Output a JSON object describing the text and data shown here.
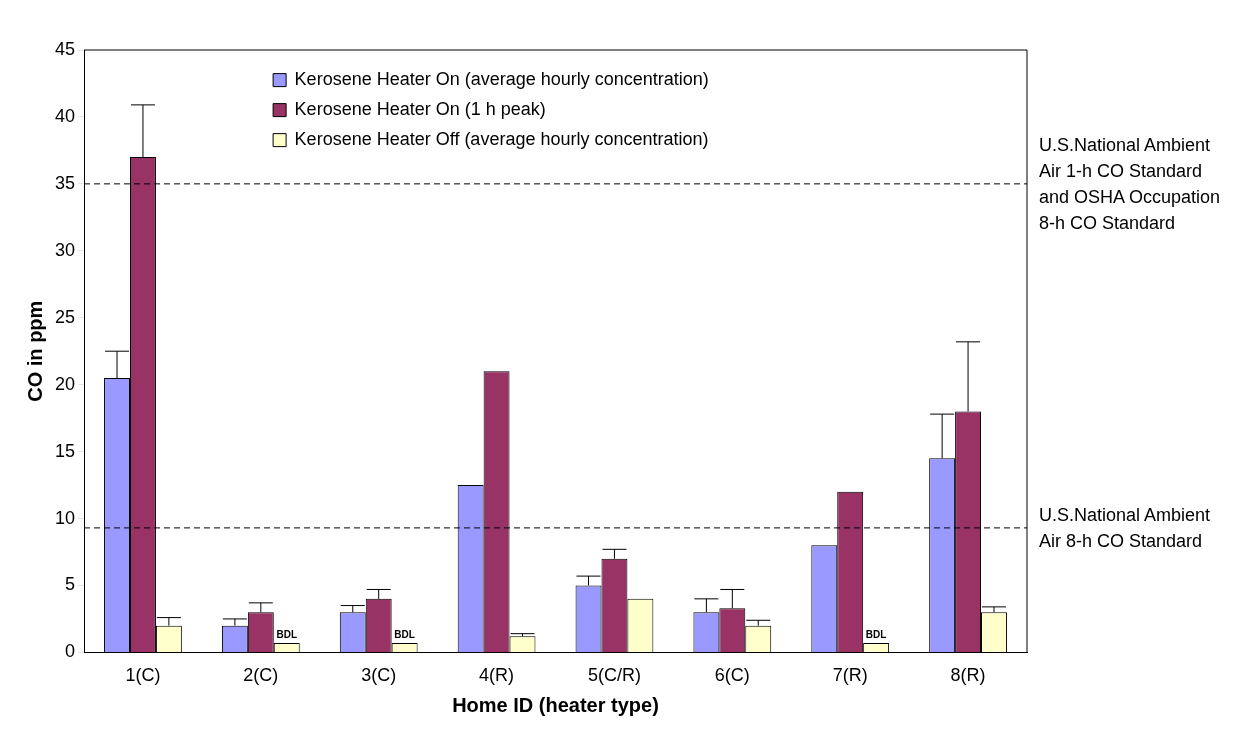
{
  "chart_data": {
    "type": "bar",
    "xlabel": "Home ID (heater type)",
    "ylabel": "CO in ppm",
    "categories": [
      "1(C)",
      "2(C)",
      "3(C)",
      "4(R)",
      "5(C/R)",
      "6(C)",
      "7(R)",
      "8(R)"
    ],
    "series": [
      {
        "name": "Kerosene Heater On (average hourly concentration)",
        "color": "#9999ff",
        "values": [
          20.5,
          2,
          3,
          12.5,
          5,
          3,
          8,
          14.5
        ],
        "errors": [
          [
            20.5,
            22.5
          ],
          [
            2,
            2.5
          ],
          [
            3,
            3.5
          ],
          null,
          [
            5,
            5.7
          ],
          [
            3,
            4
          ],
          null,
          [
            14.5,
            17.8
          ]
        ]
      },
      {
        "name": "Kerosene Heater On (1 h peak)",
        "color": "#993366",
        "values": [
          37,
          3,
          4,
          21,
          7,
          3.3,
          12,
          18
        ],
        "errors": [
          [
            37,
            40.9
          ],
          [
            3,
            3.7
          ],
          [
            4,
            4.7
          ],
          null,
          [
            7,
            7.7
          ],
          [
            3.3,
            4.7
          ],
          null,
          [
            18,
            23.2
          ]
        ]
      },
      {
        "name": "Kerosene Heater Off (average hourly concentration)",
        "color": "#ffffcc",
        "values": [
          2,
          0.7,
          0.7,
          1.2,
          4,
          2,
          0.7,
          3
        ],
        "value_labels": [
          null,
          "BDL",
          "BDL",
          null,
          null,
          null,
          "BDL",
          null
        ],
        "errors": [
          [
            2,
            2.6
          ],
          null,
          null,
          [
            1.2,
            1.4
          ],
          null,
          [
            2,
            2.4
          ],
          null,
          [
            3,
            3.4
          ]
        ]
      }
    ],
    "ylim": [
      0,
      45
    ],
    "yticks": [
      0,
      5,
      10,
      15,
      20,
      25,
      30,
      35,
      40,
      45
    ],
    "grid": false,
    "legend": "top",
    "ref_lines": [
      {
        "axis": "y",
        "value": 35,
        "label": "U.S.National Ambient Air 1-h CO Standard and OSHA Occupation 8-h CO Standard",
        "line_style": "dashed"
      },
      {
        "axis": "y",
        "value": 9.3,
        "label": "U.S.National Ambient Air 8-h CO Standard",
        "line_style": "dashed"
      }
    ]
  }
}
